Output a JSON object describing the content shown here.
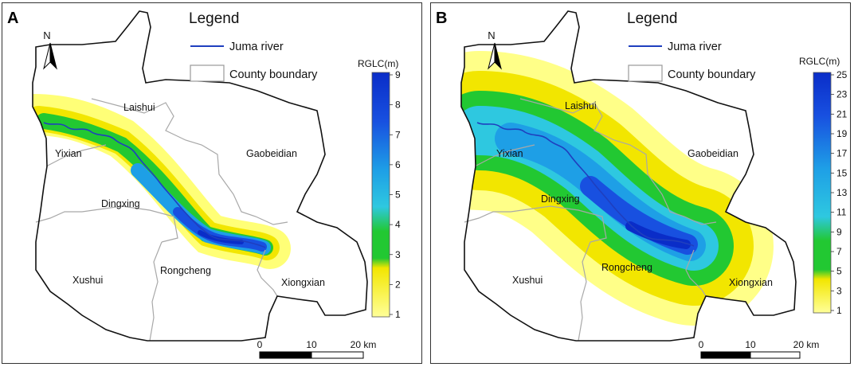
{
  "panels": [
    {
      "id": "A",
      "letter": "A",
      "legend": {
        "title": "Legend",
        "river_label": "Juma river",
        "boundary_label": "County boundary",
        "river_color": "#1f3fbf"
      },
      "north_label": "N",
      "counties": [
        "Laishui",
        "Yixian",
        "Gaobeidian",
        "Dingxing",
        "Xushui",
        "Rongcheng",
        "Xiongxian"
      ],
      "colorbar": {
        "title": "RGLC(m)",
        "min": 1,
        "max": 9,
        "tick_labels": [
          "9",
          "8",
          "7",
          "6",
          "5",
          "4",
          "3",
          "2",
          "1"
        ],
        "stops": [
          "#ffff99",
          "#ffff55",
          "#f2e600",
          "#22c832",
          "#2ec8e0",
          "#1e9fe6",
          "#1f78e8",
          "#1850e0",
          "#0a2dc8"
        ]
      },
      "scale_bar": {
        "labels": [
          "0",
          "10",
          "20 km"
        ]
      }
    },
    {
      "id": "B",
      "letter": "B",
      "legend": {
        "title": "Legend",
        "river_label": "Juma river",
        "boundary_label": "County boundary",
        "river_color": "#1f3fbf"
      },
      "north_label": "N",
      "counties": [
        "Laishui",
        "Yixian",
        "Gaobeidian",
        "Dingxing",
        "Xushui",
        "Rongcheng",
        "Xiongxian"
      ],
      "colorbar": {
        "title": "RGLC(m)",
        "min": 1,
        "max": 25,
        "tick_labels": [
          "25",
          "23",
          "21",
          "19",
          "17",
          "15",
          "13",
          "11",
          "9",
          "7",
          "5",
          "3",
          "1"
        ],
        "stops": [
          "#ffff99",
          "#ffff55",
          "#f2e600",
          "#22c832",
          "#2ec8e0",
          "#1e9fe6",
          "#1f78e8",
          "#1850e0",
          "#0a2dc8"
        ]
      },
      "scale_bar": {
        "labels": [
          "0",
          "10",
          "20 km"
        ]
      }
    }
  ]
}
